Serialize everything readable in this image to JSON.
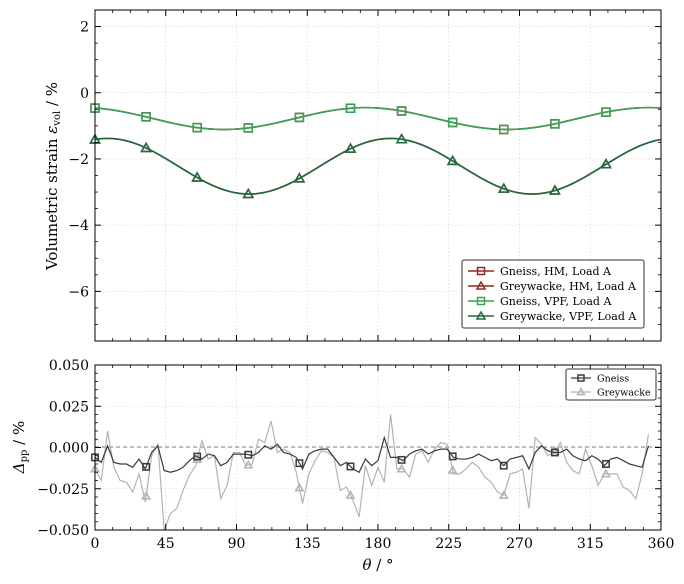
{
  "colors": {
    "gneiss_hm": "#8b2a20",
    "greywacke_hm": "#8b2a20",
    "gneiss_vpf": "#3aa156",
    "greywacke_vpf": "#1f6b3f",
    "delta_gneiss": "#3a3a3a",
    "delta_greywacke": "#b3b3b3",
    "zero_line": "#808080",
    "grid": "#d0d0d0"
  },
  "chart_data": [
    {
      "type": "line",
      "title": "",
      "xlabel": "",
      "ylabel": "Volumetric strain ε_vol / %",
      "ylabel_main": "Volumetric strain ",
      "ylabel_sym": "ε",
      "ylabel_sub": "vol",
      "ylabel_unit": " / %",
      "xlim": [
        0,
        360
      ],
      "ylim": [
        -7.5,
        2.5
      ],
      "yticks": [
        2,
        0,
        -2,
        -4,
        -6
      ],
      "ytick_labels": [
        "2",
        "0",
        "−2",
        "−4",
        "−6"
      ],
      "grid": true,
      "legend_position": "lower-right",
      "series": [
        {
          "name": "Gneiss, HM, Load A",
          "marker": "square",
          "color_key": "gneiss_hm",
          "mean": -0.78,
          "amp": 0.33,
          "phase": 82,
          "period": 180,
          "markers_at": [
            0,
            32.5,
            65,
            97.5,
            130,
            162.5,
            195,
            227.5,
            260,
            292.5,
            325
          ]
        },
        {
          "name": "Greywacke, HM, Load A",
          "marker": "triangle",
          "color_key": "greywacke_hm",
          "mean": -2.22,
          "amp": 0.84,
          "phase": 98,
          "period": 180,
          "markers_at": [
            0,
            32.5,
            65,
            97.5,
            130,
            162.5,
            195,
            227.5,
            260,
            292.5,
            325
          ]
        },
        {
          "name": "Gneiss, VPF, Load A",
          "marker": "square",
          "color_key": "gneiss_vpf",
          "mean": -0.78,
          "amp": 0.33,
          "phase": 82,
          "period": 180,
          "markers_at": [
            0,
            32.5,
            65,
            97.5,
            130,
            162.5,
            195,
            227.5,
            260,
            292.5,
            325
          ]
        },
        {
          "name": "Greywacke, VPF, Load A",
          "marker": "triangle",
          "color_key": "greywacke_vpf",
          "mean": -2.22,
          "amp": 0.84,
          "phase": 98,
          "period": 180,
          "markers_at": [
            0,
            32.5,
            65,
            97.5,
            130,
            162.5,
            195,
            227.5,
            260,
            292.5,
            325
          ]
        }
      ]
    },
    {
      "type": "line",
      "title": "",
      "xlabel": "θ / °",
      "xlabel_sym": "θ",
      "xlabel_unit": " / °",
      "ylabel": "Δ_pp / %",
      "ylabel_sym": "Δ",
      "ylabel_sub": "pp",
      "ylabel_unit": " / %",
      "xlim": [
        0,
        360
      ],
      "ylim": [
        -0.05,
        0.05
      ],
      "xticks": [
        0,
        45,
        90,
        135,
        180,
        225,
        270,
        315,
        360
      ],
      "xtick_labels": [
        "0",
        "45",
        "90",
        "135",
        "180",
        "225",
        "270",
        "315",
        "360"
      ],
      "yticks": [
        0.05,
        0.025,
        0.0,
        -0.025,
        -0.05
      ],
      "ytick_labels": [
        "0.050",
        "0.025",
        "0.000",
        "−0.025",
        "−0.050"
      ],
      "grid": true,
      "legend_position": "upper-right",
      "series": [
        {
          "name": "Gneiss",
          "marker": "square",
          "color_key": "delta_gneiss",
          "x": [
            0,
            4,
            8,
            12,
            16,
            20,
            24,
            28,
            32,
            36,
            40,
            44,
            48,
            52,
            56,
            60,
            64,
            68,
            72,
            76,
            80,
            84,
            88,
            92,
            96,
            100,
            104,
            108,
            112,
            116,
            120,
            124,
            128,
            132,
            136,
            140,
            144,
            148,
            152,
            156,
            160,
            164,
            168,
            172,
            176,
            180,
            184,
            188,
            192,
            196,
            200,
            204,
            208,
            212,
            216,
            220,
            224,
            228,
            232,
            236,
            240,
            244,
            248,
            252,
            256,
            260,
            264,
            268,
            272,
            276,
            280,
            284,
            288,
            292,
            296,
            300,
            304,
            308,
            312,
            316,
            320,
            324,
            328,
            332,
            336,
            340,
            344,
            348,
            352
          ],
          "y": [
            -0.006,
            -0.009,
            0.001,
            -0.009,
            -0.01,
            -0.01,
            -0.012,
            -0.007,
            -0.013,
            -0.003,
            0.001,
            -0.014,
            -0.015,
            -0.014,
            -0.012,
            -0.008,
            -0.005,
            -0.007,
            -0.004,
            -0.005,
            -0.011,
            -0.009,
            -0.004,
            -0.004,
            -0.004,
            -0.005,
            -0.003,
            0.001,
            -0.001,
            0.002,
            -0.003,
            -0.004,
            -0.006,
            -0.013,
            -0.004,
            -0.002,
            -0.001,
            -0.001,
            -0.006,
            -0.011,
            -0.009,
            -0.013,
            -0.015,
            -0.007,
            -0.011,
            -0.008,
            0.006,
            -0.006,
            -0.006,
            -0.008,
            -0.004,
            -0.002,
            -0.001,
            -0.004,
            -0.002,
            -0.001,
            -0.001,
            -0.006,
            -0.007,
            -0.007,
            -0.006,
            -0.004,
            -0.006,
            -0.008,
            -0.007,
            -0.011,
            -0.007,
            -0.006,
            -0.005,
            -0.013,
            -0.003,
            0.001,
            -0.002,
            -0.003,
            -0.003,
            -0.001,
            -0.005,
            -0.007,
            -0.008,
            -0.005,
            -0.007,
            -0.011,
            -0.007,
            -0.006,
            -0.008,
            -0.01,
            -0.011,
            -0.012,
            0.001
          ],
          "markers_at": [
            0,
            32.5,
            65,
            97.5,
            130,
            162.5,
            195,
            227.5,
            260,
            292.5,
            325
          ]
        },
        {
          "name": "Greywacke",
          "marker": "triangle",
          "color_key": "delta_greywacke",
          "x": [
            0,
            4,
            8,
            12,
            16,
            20,
            24,
            28,
            32,
            36,
            40,
            44,
            48,
            52,
            56,
            60,
            64,
            68,
            72,
            76,
            80,
            84,
            88,
            92,
            96,
            100,
            104,
            108,
            112,
            116,
            120,
            124,
            128,
            132,
            136,
            140,
            144,
            148,
            152,
            156,
            160,
            164,
            168,
            172,
            176,
            180,
            184,
            188,
            192,
            196,
            200,
            204,
            208,
            212,
            216,
            220,
            224,
            228,
            232,
            236,
            240,
            244,
            248,
            252,
            256,
            260,
            264,
            268,
            272,
            276,
            280,
            284,
            288,
            292,
            296,
            300,
            304,
            308,
            312,
            316,
            320,
            324,
            328,
            332,
            336,
            340,
            344,
            348,
            352
          ],
          "y": [
            -0.013,
            -0.02,
            0.01,
            -0.012,
            -0.02,
            -0.021,
            -0.027,
            -0.016,
            -0.033,
            -0.005,
            0.002,
            -0.05,
            -0.04,
            -0.037,
            -0.026,
            -0.017,
            -0.011,
            0.004,
            -0.007,
            -0.005,
            -0.031,
            -0.023,
            -0.003,
            -0.003,
            -0.011,
            -0.01,
            0.005,
            0.003,
            0.016,
            -0.003,
            -0.001,
            -0.003,
            -0.015,
            -0.034,
            -0.016,
            -0.008,
            -0.002,
            -0.003,
            -0.006,
            -0.026,
            -0.024,
            -0.032,
            -0.042,
            -0.011,
            -0.023,
            -0.012,
            -0.021,
            0.02,
            -0.013,
            -0.013,
            -0.018,
            -0.004,
            -0.002,
            -0.009,
            -0.001,
            0.003,
            0.002,
            -0.016,
            -0.016,
            -0.013,
            -0.009,
            -0.012,
            -0.018,
            -0.021,
            -0.027,
            -0.029,
            -0.016,
            -0.015,
            -0.013,
            -0.037,
            0.006,
            0.002,
            -0.005,
            -0.003,
            0.003,
            -0.009,
            -0.014,
            -0.016,
            -0.001,
            -0.011,
            -0.023,
            -0.016,
            -0.016,
            -0.016,
            -0.024,
            -0.026,
            -0.031,
            -0.016,
            0.008
          ],
          "markers_at": [
            0,
            32.5,
            65,
            97.5,
            130,
            162.5,
            195,
            227.5,
            260,
            292.5,
            325
          ]
        }
      ]
    }
  ]
}
